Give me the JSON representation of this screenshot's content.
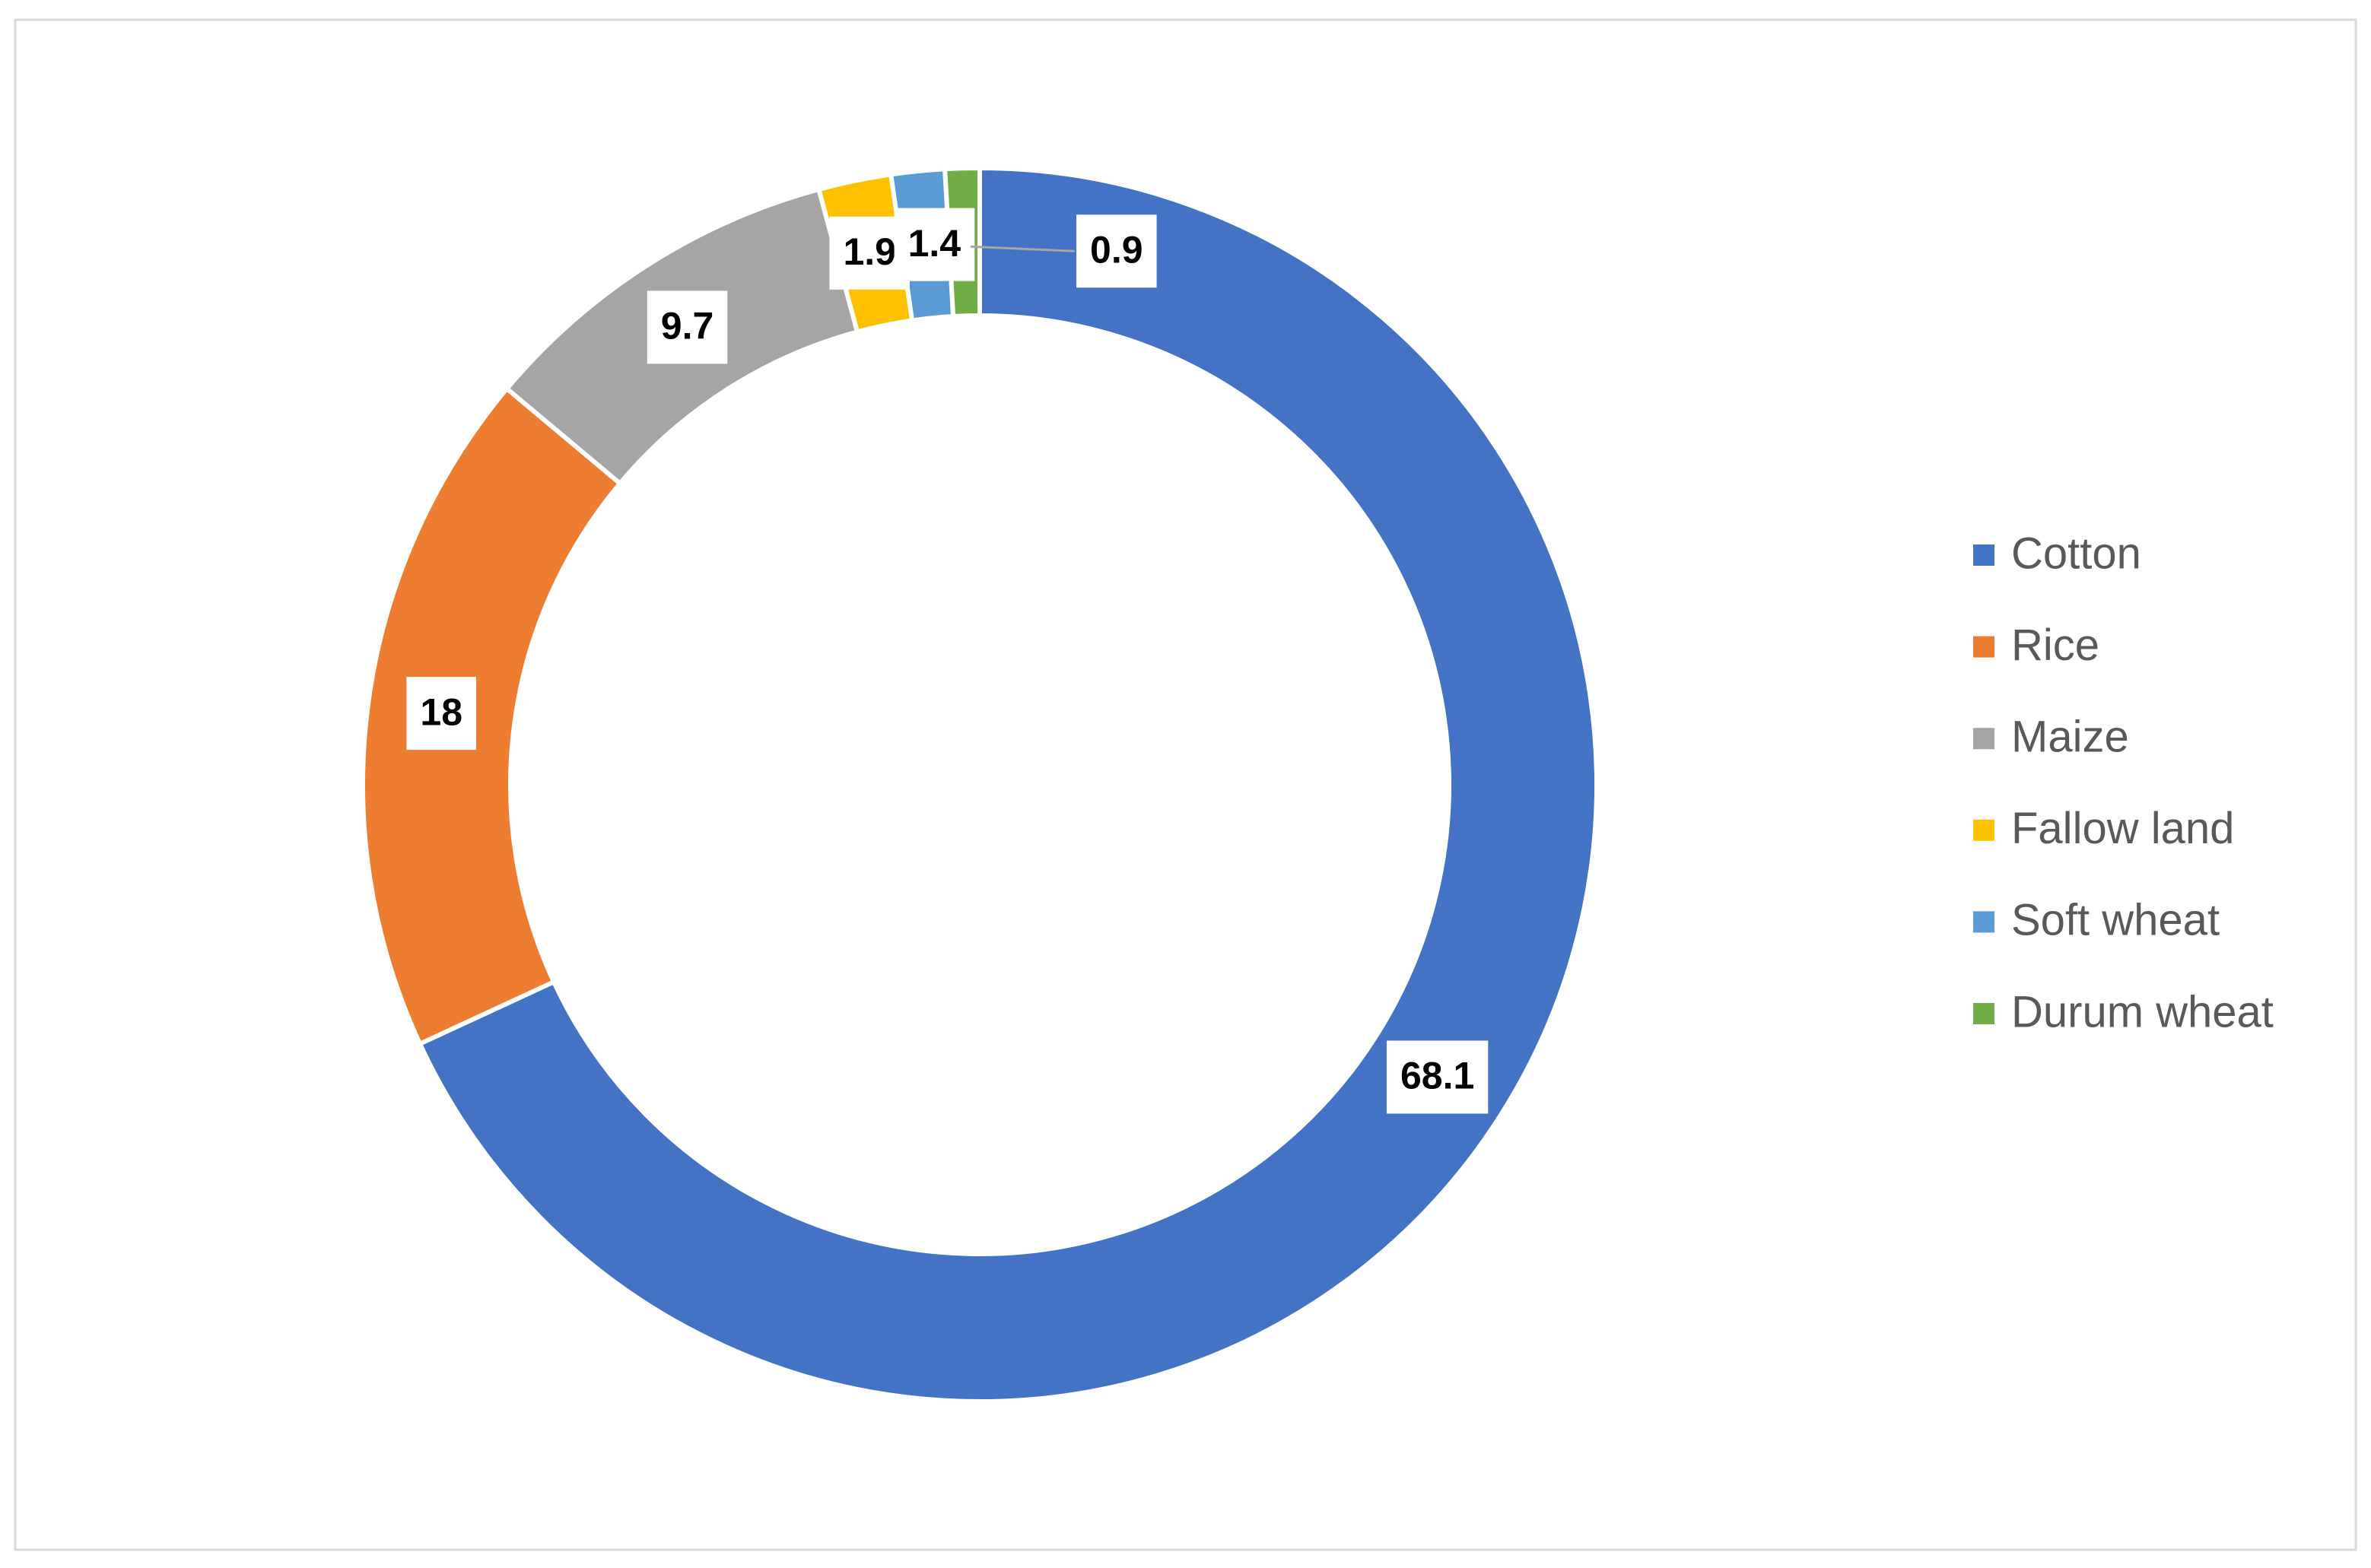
{
  "chart_data": {
    "type": "donut",
    "categories": [
      "Cotton",
      "Rice",
      "Maize",
      "Fallow land",
      "Soft wheat",
      "Durum wheat"
    ],
    "values": [
      68.1,
      18,
      9.7,
      1.9,
      1.4,
      0.9
    ],
    "colors": [
      "#4472c4",
      "#ed7d31",
      "#a5a5a5",
      "#ffc000",
      "#5b9bd5",
      "#70ad47"
    ],
    "legend": "right"
  }
}
